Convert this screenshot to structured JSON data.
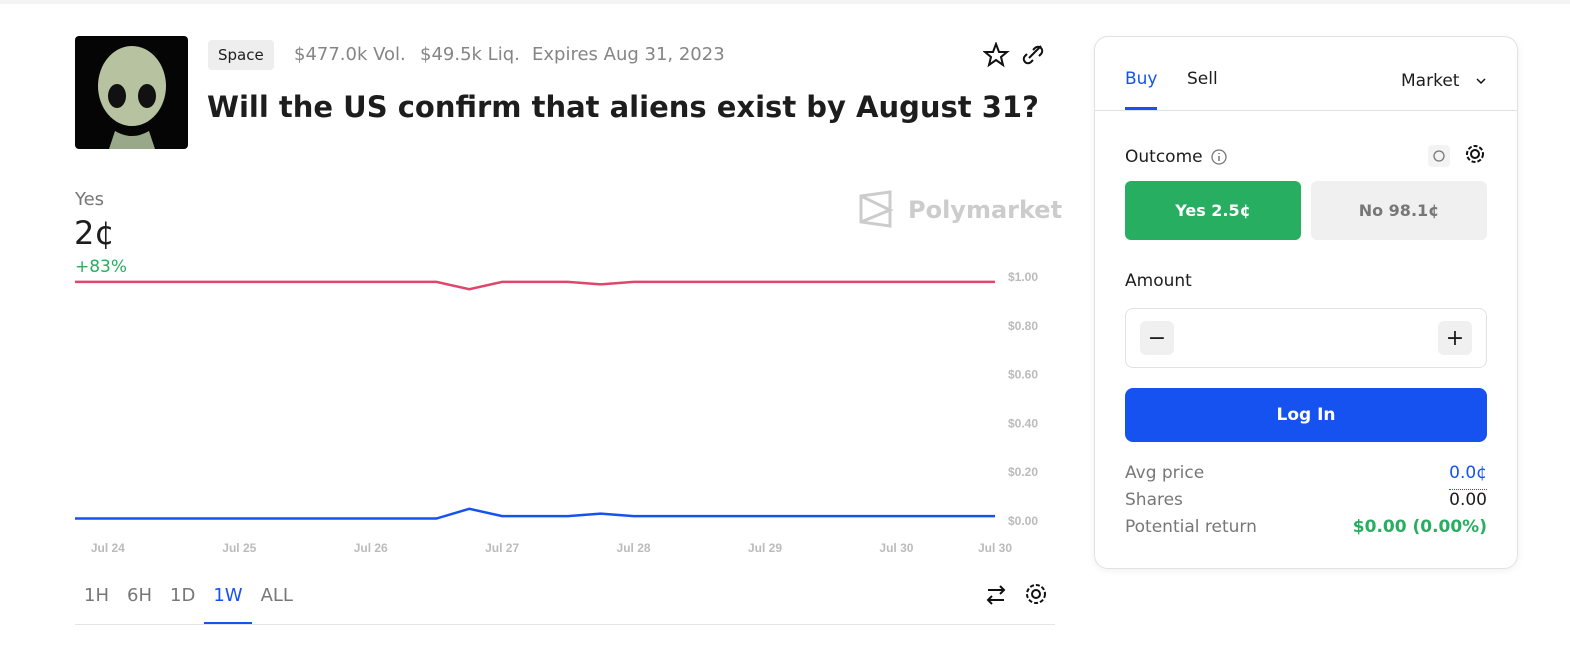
{
  "header": {
    "tag": "Space",
    "volume": "$477.0k Vol.",
    "liquidity": "$49.5k Liq.",
    "expires": "Expires Aug 31, 2023",
    "title": "Will the US confirm that aliens exist by August 31?"
  },
  "price": {
    "outcome": "Yes",
    "value": "2¢",
    "change": "+83%"
  },
  "watermark": "Polymarket",
  "ranges": [
    "1H",
    "6H",
    "1D",
    "1W",
    "ALL"
  ],
  "chart_data": {
    "type": "line",
    "categories": [
      null,
      "Jul 24",
      null,
      null,
      null,
      "Jul 25",
      null,
      null,
      null,
      "Jul 26",
      null,
      null,
      null,
      "Jul 27",
      null,
      null,
      null,
      "Jul 28",
      null,
      null,
      null,
      "Jul 29",
      null,
      null,
      null,
      "Jul 30",
      null,
      null,
      "Jul 30"
    ],
    "series": [
      {
        "name": "No",
        "color": "#e0456b",
        "values": [
          0.98,
          0.98,
          0.98,
          0.98,
          0.98,
          0.98,
          0.98,
          0.98,
          0.98,
          0.98,
          0.98,
          0.98,
          0.95,
          0.98,
          0.98,
          0.98,
          0.97,
          0.98,
          0.98,
          0.98,
          0.98,
          0.98,
          0.98,
          0.98,
          0.98,
          0.98,
          0.98,
          0.98,
          0.98
        ]
      },
      {
        "name": "Yes",
        "color": "#1652f0",
        "values": [
          0.01,
          0.01,
          0.01,
          0.01,
          0.01,
          0.01,
          0.01,
          0.01,
          0.01,
          0.01,
          0.01,
          0.01,
          0.05,
          0.02,
          0.02,
          0.02,
          0.03,
          0.02,
          0.02,
          0.02,
          0.02,
          0.02,
          0.02,
          0.02,
          0.02,
          0.02,
          0.02,
          0.02,
          0.02
        ]
      }
    ],
    "ylim": [
      0,
      1
    ],
    "yticks": [
      {
        "value": 0,
        "label": "$0.00"
      },
      {
        "value": 0.2,
        "label": "$0.20"
      },
      {
        "value": 0.4,
        "label": "$0.40"
      },
      {
        "value": 0.6,
        "label": "$0.60"
      },
      {
        "value": 0.8,
        "label": "$0.80"
      },
      {
        "value": 1,
        "label": "$1.00"
      }
    ]
  },
  "panel": {
    "tabs": [
      "Buy",
      "Sell"
    ],
    "order_type": "Market",
    "outcome_label": "Outcome",
    "yes": "Yes 2.5¢",
    "no": "No 98.1¢",
    "amount_label": "Amount",
    "login": "Log In",
    "stats": [
      [
        "Avg price",
        "0.0¢"
      ],
      [
        "Shares",
        "0.00"
      ],
      [
        "Potential return",
        "$0.00 (0.00%)"
      ]
    ]
  }
}
